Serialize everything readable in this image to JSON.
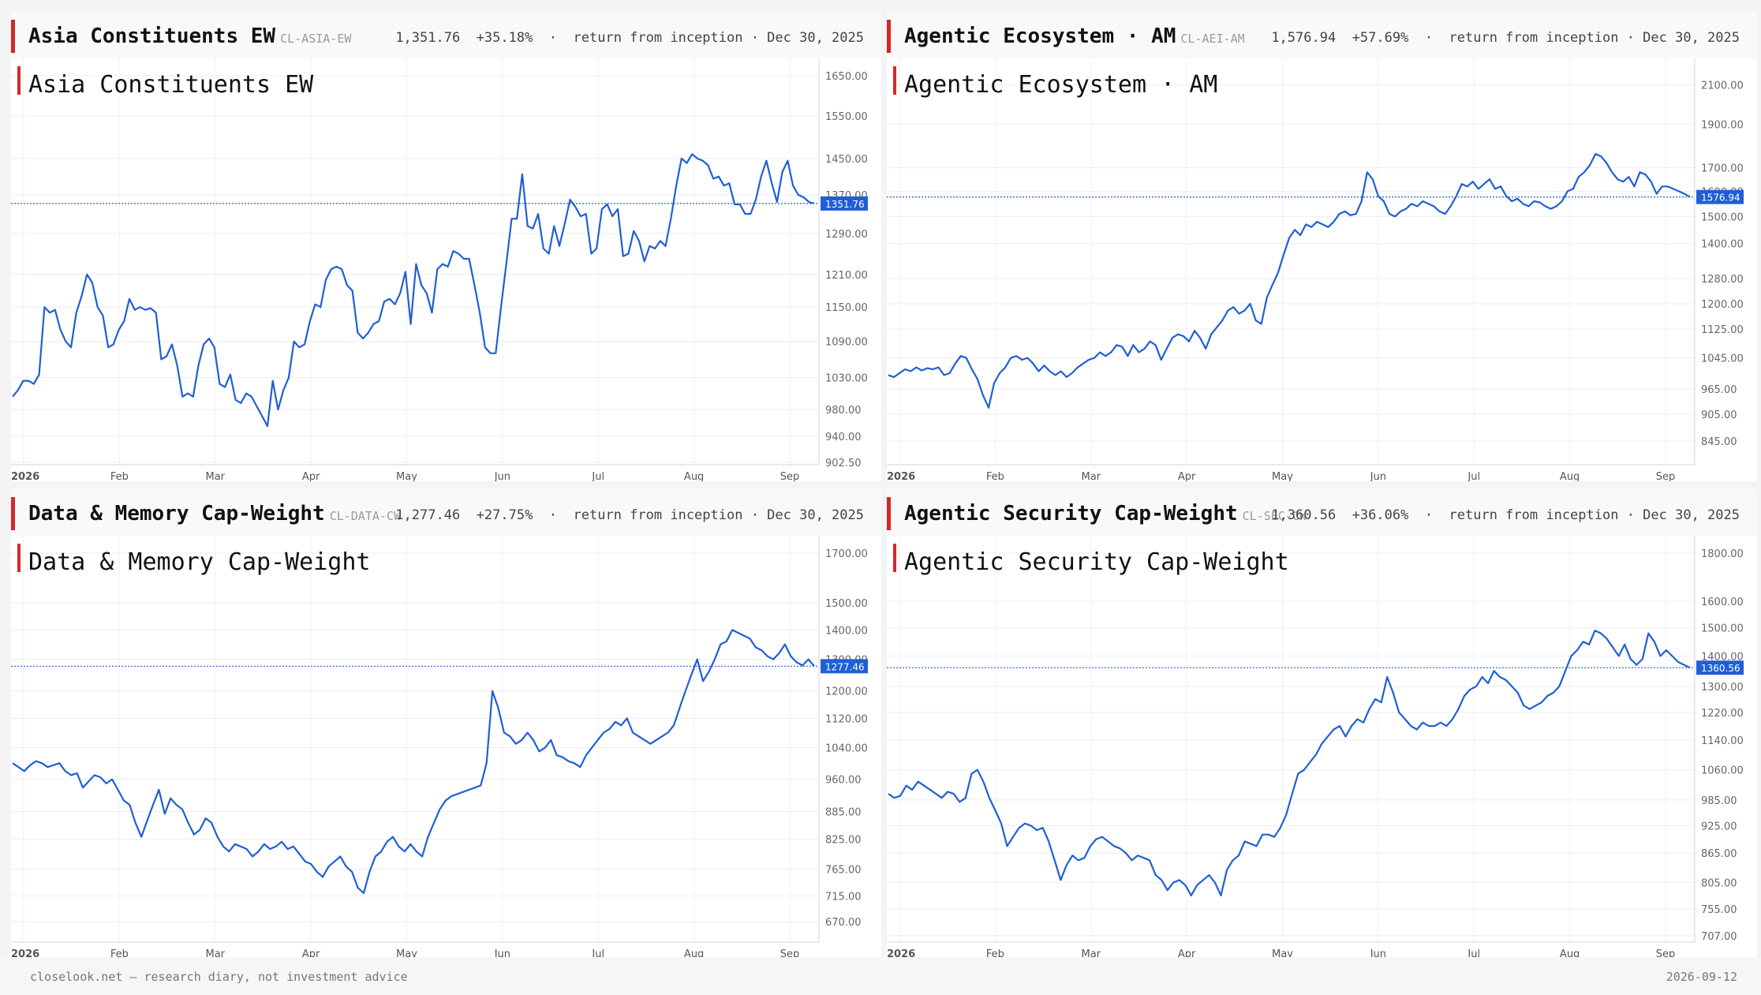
{
  "footer": {
    "left": "closelook.net — research diary, not investment advice",
    "right": "2026-09-12"
  },
  "panels": [
    {
      "header": {
        "title": "Asia Constituents EW",
        "code": "CL-ASIA-EW",
        "level": "1,351.76",
        "return": "+35.18%",
        "sep": "  ·  ",
        "note": "return from inception · Dec 30, 2025"
      },
      "chart_data": {
        "type": "line",
        "title": "Asia Constituents EW",
        "x_ticks": [
          "2026",
          "Feb",
          "Mar",
          "Apr",
          "May",
          "Jun",
          "Jul",
          "Aug",
          "Sep"
        ],
        "y_ticks": [
          902.5,
          940,
          980,
          1030,
          1090,
          1150,
          1210,
          1290,
          1370,
          1450,
          1550,
          1650
        ],
        "y_tick_labels": [
          "902.50",
          "940.00",
          "980.00",
          "1030.00",
          "1090.00",
          "1150.00",
          "1210.00",
          "1290.00",
          "1370.00",
          "1450.00",
          "1550.00",
          "1650.00"
        ],
        "ylim": [
          902.5,
          1650
        ],
        "y_scale": "log",
        "grid": true,
        "last_value": 1351.76,
        "last_label": "1351.76",
        "accent": "#1f5fd6",
        "series": [
          {
            "values": [
              1000,
              1010,
              1025,
              1025,
              1020,
              1035,
              1150,
              1140,
              1145,
              1110,
              1090,
              1080,
              1140,
              1170,
              1210,
              1195,
              1150,
              1135,
              1080,
              1085,
              1110,
              1125,
              1165,
              1145,
              1150,
              1145,
              1148,
              1140,
              1060,
              1065,
              1085,
              1050,
              1000,
              1005,
              1000,
              1050,
              1085,
              1095,
              1080,
              1020,
              1015,
              1035,
              995,
              990,
              1005,
              1000,
              985,
              970,
              955,
              1025,
              980,
              1010,
              1030,
              1090,
              1080,
              1085,
              1125,
              1155,
              1150,
              1200,
              1220,
              1225,
              1220,
              1190,
              1180,
              1105,
              1095,
              1105,
              1120,
              1125,
              1160,
              1165,
              1155,
              1175,
              1215,
              1120,
              1230,
              1190,
              1175,
              1140,
              1220,
              1230,
              1225,
              1255,
              1250,
              1240,
              1240,
              1190,
              1140,
              1080,
              1070,
              1070,
              1150,
              1230,
              1320,
              1320,
              1415,
              1305,
              1300,
              1330,
              1260,
              1250,
              1305,
              1265,
              1310,
              1360,
              1345,
              1325,
              1330,
              1250,
              1260,
              1340,
              1350,
              1325,
              1340,
              1245,
              1250,
              1295,
              1275,
              1235,
              1265,
              1260,
              1275,
              1265,
              1320,
              1390,
              1450,
              1440,
              1460,
              1450,
              1445,
              1435,
              1405,
              1410,
              1390,
              1395,
              1350,
              1350,
              1330,
              1330,
              1360,
              1410,
              1445,
              1395,
              1355,
              1420,
              1445,
              1390,
              1370,
              1365,
              1355,
              1351.76
            ]
          }
        ]
      }
    },
    {
      "header": {
        "title": "Agentic Ecosystem · AM",
        "code": "CL-AEI-AM",
        "level": "1,576.94",
        "return": "+57.69%",
        "sep": "  ·  ",
        "note": "return from inception · Dec 30, 2025"
      },
      "chart_data": {
        "type": "line",
        "title": "Agentic Ecosystem · AM",
        "x_ticks": [
          "2026",
          "Feb",
          "Mar",
          "Apr",
          "May",
          "Jun",
          "Jul",
          "Aug",
          "Sep"
        ],
        "y_ticks": [
          845,
          905,
          965,
          1045,
          1125,
          1200,
          1280,
          1400,
          1500,
          1600,
          1700,
          1900,
          2100
        ],
        "y_tick_labels": [
          "845.00",
          "905.00",
          "965.00",
          "1045.00",
          "1125.00",
          "1200.00",
          "1280.00",
          "1400.00",
          "1500.00",
          "1600.00",
          "1700.00",
          "1900.00",
          "2100.00"
        ],
        "ylim": [
          800,
          2150
        ],
        "y_scale": "log",
        "grid": true,
        "last_value": 1576.94,
        "last_label": "1576.94",
        "accent": "#1f5fd6",
        "series": [
          {
            "values": [
              1000,
              995,
              1005,
              1015,
              1010,
              1020,
              1012,
              1018,
              1015,
              1020,
              1000,
              1005,
              1030,
              1050,
              1045,
              1015,
              990,
              950,
              920,
              980,
              1005,
              1020,
              1045,
              1050,
              1040,
              1045,
              1030,
              1010,
              1025,
              1010,
              1000,
              1010,
              995,
              1005,
              1020,
              1030,
              1040,
              1045,
              1060,
              1050,
              1060,
              1080,
              1075,
              1050,
              1080,
              1060,
              1070,
              1090,
              1080,
              1040,
              1070,
              1100,
              1110,
              1105,
              1090,
              1120,
              1100,
              1070,
              1110,
              1130,
              1150,
              1180,
              1190,
              1170,
              1180,
              1200,
              1150,
              1140,
              1220,
              1260,
              1300,
              1360,
              1420,
              1450,
              1430,
              1470,
              1460,
              1480,
              1470,
              1460,
              1480,
              1510,
              1520,
              1505,
              1510,
              1560,
              1680,
              1650,
              1580,
              1560,
              1510,
              1500,
              1520,
              1530,
              1550,
              1540,
              1560,
              1550,
              1540,
              1520,
              1510,
              1540,
              1580,
              1630,
              1620,
              1640,
              1610,
              1630,
              1650,
              1610,
              1620,
              1580,
              1560,
              1570,
              1550,
              1540,
              1560,
              1555,
              1540,
              1530,
              1540,
              1560,
              1600,
              1610,
              1660,
              1680,
              1710,
              1760,
              1750,
              1720,
              1680,
              1650,
              1640,
              1660,
              1620,
              1680,
              1670,
              1640,
              1590,
              1620,
              1620,
              1610,
              1600,
              1590,
              1576.94
            ]
          }
        ]
      }
    },
    {
      "header": {
        "title": "Data & Memory Cap-Weight",
        "code": "CL-DATA-CW",
        "level": "1,277.46",
        "return": "+27.75%",
        "sep": "  ·  ",
        "note": "return from inception · Dec 30, 2025"
      },
      "chart_data": {
        "type": "line",
        "title": "Data & Memory Cap-Weight",
        "x_ticks": [
          "2026",
          "Feb",
          "Mar",
          "Apr",
          "May",
          "Jun",
          "Jul",
          "Aug",
          "Sep"
        ],
        "y_ticks": [
          670,
          715,
          765,
          825,
          885,
          960,
          1040,
          1120,
          1200,
          1300,
          1400,
          1500,
          1700
        ],
        "y_tick_labels": [
          "670.00",
          "715.00",
          "765.00",
          "825.00",
          "885.00",
          "960.00",
          "1040.00",
          "1120.00",
          "1200.00",
          "1300.00",
          "1400.00",
          "1500.00",
          "1700.00"
        ],
        "ylim": [
          640,
          1700
        ],
        "y_scale": "log",
        "grid": true,
        "last_value": 1277.46,
        "last_label": "1277.46",
        "accent": "#1f5fd6",
        "series": [
          {
            "values": [
              1000,
              990,
              980,
              995,
              1005,
              1000,
              990,
              995,
              1000,
              980,
              970,
              975,
              940,
              955,
              970,
              965,
              950,
              960,
              935,
              910,
              900,
              860,
              830,
              865,
              900,
              935,
              880,
              915,
              900,
              890,
              860,
              835,
              845,
              870,
              860,
              830,
              810,
              800,
              815,
              810,
              805,
              790,
              800,
              815,
              805,
              810,
              820,
              805,
              810,
              795,
              780,
              775,
              760,
              750,
              770,
              780,
              790,
              770,
              760,
              730,
              720,
              760,
              790,
              800,
              820,
              830,
              810,
              800,
              815,
              800,
              790,
              830,
              860,
              890,
              910,
              920,
              925,
              930,
              935,
              940,
              945,
              1000,
              1200,
              1150,
              1080,
              1070,
              1050,
              1060,
              1080,
              1060,
              1030,
              1040,
              1060,
              1020,
              1015,
              1005,
              1000,
              990,
              1020,
              1040,
              1060,
              1080,
              1090,
              1110,
              1100,
              1120,
              1080,
              1070,
              1060,
              1050,
              1060,
              1070,
              1080,
              1100,
              1150,
              1200,
              1250,
              1300,
              1230,
              1260,
              1300,
              1350,
              1360,
              1400,
              1390,
              1380,
              1370,
              1340,
              1330,
              1310,
              1300,
              1320,
              1350,
              1310,
              1290,
              1280,
              1300,
              1277.46
            ]
          }
        ]
      }
    },
    {
      "header": {
        "title": "Agentic Security Cap-Weight",
        "code": "CL-SEC-CW",
        "level": "1,360.56",
        "return": "+36.06%",
        "sep": "  ·  ",
        "note": "return from inception · Dec 30, 2025"
      },
      "chart_data": {
        "type": "line",
        "title": "Agentic Security Cap-Weight",
        "x_ticks": [
          "2026",
          "Feb",
          "Mar",
          "Apr",
          "May",
          "Jun",
          "Jul",
          "Aug",
          "Sep"
        ],
        "y_ticks": [
          707,
          755,
          805,
          865,
          925,
          985,
          1060,
          1140,
          1220,
          1300,
          1400,
          1500,
          1600,
          1800
        ],
        "y_tick_labels": [
          "707.00",
          "755.00",
          "805.00",
          "865.00",
          "925.00",
          "985.00",
          "1060.00",
          "1140.00",
          "1220.00",
          "1300.00",
          "1400.00",
          "1500.00",
          "1600.00",
          "1800.00"
        ],
        "ylim": [
          700,
          1800
        ],
        "y_scale": "log",
        "grid": true,
        "last_value": 1360.56,
        "last_label": "1360.56",
        "accent": "#1f5fd6",
        "series": [
          {
            "values": [
              1000,
              990,
              995,
              1020,
              1010,
              1030,
              1020,
              1010,
              1000,
              990,
              1005,
              1000,
              980,
              990,
              1050,
              1060,
              1030,
              990,
              960,
              930,
              880,
              900,
              920,
              930,
              925,
              915,
              920,
              890,
              850,
              810,
              840,
              860,
              850,
              855,
              880,
              895,
              900,
              890,
              880,
              875,
              865,
              850,
              860,
              855,
              850,
              820,
              810,
              790,
              805,
              810,
              800,
              780,
              800,
              810,
              820,
              805,
              780,
              830,
              850,
              860,
              890,
              885,
              880,
              905,
              905,
              900,
              920,
              950,
              1000,
              1050,
              1060,
              1080,
              1100,
              1130,
              1150,
              1170,
              1180,
              1150,
              1180,
              1200,
              1190,
              1230,
              1260,
              1250,
              1330,
              1280,
              1220,
              1200,
              1180,
              1170,
              1190,
              1180,
              1180,
              1190,
              1180,
              1200,
              1230,
              1270,
              1290,
              1300,
              1330,
              1310,
              1350,
              1330,
              1320,
              1300,
              1280,
              1240,
              1230,
              1240,
              1250,
              1270,
              1280,
              1300,
              1350,
              1400,
              1420,
              1450,
              1440,
              1490,
              1480,
              1460,
              1430,
              1400,
              1440,
              1390,
              1370,
              1390,
              1480,
              1450,
              1400,
              1420,
              1400,
              1380,
              1370,
              1360.56
            ]
          }
        ]
      }
    }
  ]
}
